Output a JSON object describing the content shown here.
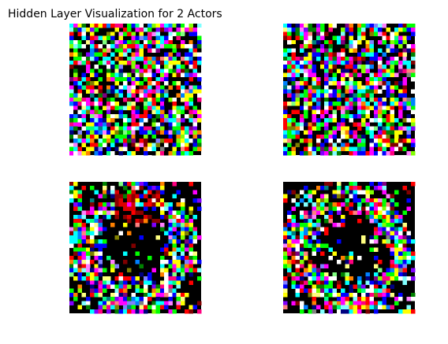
{
  "title": "Hidden Layer Visualization for 2 Actors"
}
